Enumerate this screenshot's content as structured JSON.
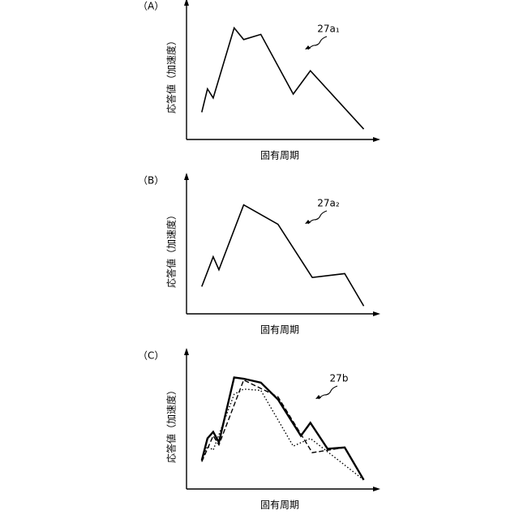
{
  "chart_data": [
    {
      "type": "line",
      "label": "（A）",
      "ylabel": "応答値（加速度）",
      "xlabel": "固有周期",
      "annotation": "27a₁",
      "xlim": [
        0,
        100
      ],
      "ylim": [
        0,
        100
      ],
      "series": [
        {
          "color": "#000000",
          "style": "solid",
          "x": [
            8,
            11,
            14,
            25,
            30,
            39,
            56,
            65,
            93
          ],
          "values": [
            21,
            39,
            32,
            86,
            77,
            81,
            35,
            53,
            8
          ]
        }
      ]
    },
    {
      "type": "line",
      "label": "（B）",
      "ylabel": "応答値（加速度）",
      "xlabel": "固有周期",
      "annotation": "27a₂",
      "xlim": [
        0,
        100
      ],
      "ylim": [
        0,
        100
      ],
      "series": [
        {
          "color": "#000000",
          "style": "solid",
          "x": [
            8,
            14,
            17,
            30,
            48,
            66,
            83,
            93
          ],
          "values": [
            21,
            44,
            34,
            84,
            69,
            28,
            31,
            6
          ]
        }
      ]
    },
    {
      "type": "line",
      "label": "（C）",
      "ylabel": "応答値（加速度）",
      "xlabel": "固有周期",
      "annotation": "27b",
      "xlim": [
        0,
        100
      ],
      "ylim": [
        0,
        100
      ],
      "series": [
        {
          "color": "#000000",
          "style": "bold",
          "x": [
            8,
            11,
            14,
            17,
            25,
            30,
            39,
            48,
            60,
            65,
            74,
            83,
            93
          ],
          "values": [
            22,
            39,
            44,
            36,
            86,
            85,
            82,
            69,
            41,
            51,
            31,
            32,
            7
          ]
        },
        {
          "color": "#000000",
          "style": "dashed",
          "x": [
            8,
            14,
            17,
            30,
            48,
            66,
            83,
            93
          ],
          "values": [
            21,
            41,
            34,
            84,
            71,
            28,
            32,
            7
          ]
        },
        {
          "color": "#000000",
          "style": "dotted",
          "x": [
            8,
            11,
            14,
            25,
            30,
            39,
            56,
            65,
            93
          ],
          "values": [
            22,
            33,
            30,
            73,
            77,
            76,
            33,
            39,
            7
          ]
        }
      ]
    }
  ]
}
